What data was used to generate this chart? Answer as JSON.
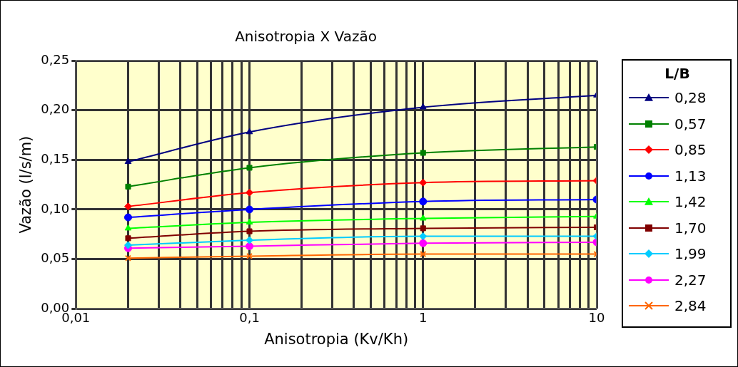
{
  "chart_data": {
    "type": "line",
    "title": "Anisotropia X Vazão",
    "xlabel": "Anisotropia (Kv/Kh)",
    "ylabel": "Vazão (l/s/m)",
    "legend_title": "L/B",
    "legend": "right",
    "grid": true,
    "log": "x",
    "x": [
      0.02,
      0.1,
      1,
      10
    ],
    "xlim": [
      0.01,
      10
    ],
    "xticks": [
      {
        "value": 0.01,
        "label": "0,01"
      },
      {
        "value": 0.02,
        "label": null
      },
      {
        "value": 0.03,
        "label": null
      },
      {
        "value": 0.04,
        "label": null
      },
      {
        "value": 0.05,
        "label": null
      },
      {
        "value": 0.06,
        "label": null
      },
      {
        "value": 0.07,
        "label": null
      },
      {
        "value": 0.08,
        "label": null
      },
      {
        "value": 0.09,
        "label": null
      },
      {
        "value": 0.1,
        "label": "0,1"
      },
      {
        "value": 0.2,
        "label": null
      },
      {
        "value": 0.3,
        "label": null
      },
      {
        "value": 0.4,
        "label": null
      },
      {
        "value": 0.5,
        "label": null
      },
      {
        "value": 0.6,
        "label": null
      },
      {
        "value": 0.7,
        "label": null
      },
      {
        "value": 0.8,
        "label": null
      },
      {
        "value": 0.9,
        "label": null
      },
      {
        "value": 1,
        "label": "1"
      },
      {
        "value": 2,
        "label": null
      },
      {
        "value": 3,
        "label": null
      },
      {
        "value": 4,
        "label": null
      },
      {
        "value": 5,
        "label": null
      },
      {
        "value": 6,
        "label": null
      },
      {
        "value": 7,
        "label": null
      },
      {
        "value": 8,
        "label": null
      },
      {
        "value": 9,
        "label": null
      },
      {
        "value": 10,
        "label": "10"
      }
    ],
    "ylim": [
      0,
      0.25
    ],
    "yticks": [
      {
        "value": 0,
        "label": "0,00"
      },
      {
        "value": 0.05,
        "label": "0,05"
      },
      {
        "value": 0.1,
        "label": "0,10"
      },
      {
        "value": 0.15,
        "label": "0,15"
      },
      {
        "value": 0.2,
        "label": "0,20"
      },
      {
        "value": 0.25,
        "label": "0,25"
      }
    ],
    "series": [
      {
        "name": "0,28",
        "color": "#000080",
        "marker": "triangle",
        "values": [
          0.148,
          0.178,
          0.203,
          0.215
        ]
      },
      {
        "name": "0,57",
        "color": "#008000",
        "marker": "square",
        "values": [
          0.123,
          0.142,
          0.157,
          0.163
        ]
      },
      {
        "name": "0,85",
        "color": "#ff0000",
        "marker": "diamond",
        "values": [
          0.103,
          0.117,
          0.127,
          0.129
        ]
      },
      {
        "name": "1,13",
        "color": "#0000ff",
        "marker": "circle",
        "values": [
          0.092,
          0.1,
          0.108,
          0.11
        ]
      },
      {
        "name": "1,42",
        "color": "#00ff00",
        "marker": "triangle",
        "values": [
          0.081,
          0.087,
          0.091,
          0.093
        ]
      },
      {
        "name": "1,70",
        "color": "#800000",
        "marker": "square",
        "values": [
          0.071,
          0.078,
          0.081,
          0.082
        ]
      },
      {
        "name": "1,99",
        "color": "#00ccff",
        "marker": "diamond",
        "values": [
          0.064,
          0.069,
          0.073,
          0.073
        ]
      },
      {
        "name": "2,27",
        "color": "#ff00ff",
        "marker": "circle",
        "values": [
          0.061,
          0.063,
          0.066,
          0.067
        ]
      },
      {
        "name": "2,84",
        "color": "#ff6600",
        "marker": "cross",
        "values": [
          0.051,
          0.053,
          0.055,
          0.055
        ]
      }
    ]
  }
}
